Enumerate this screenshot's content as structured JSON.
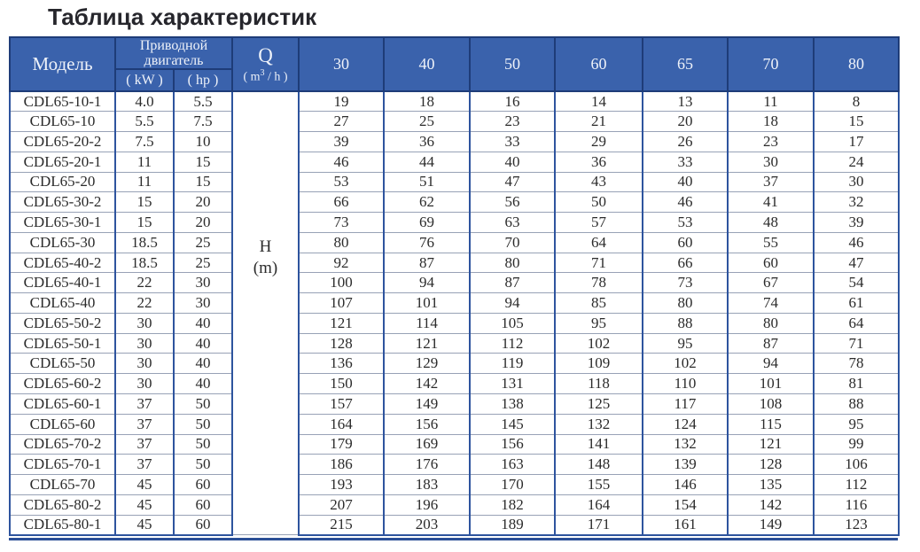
{
  "page": {
    "title": "Таблица характеристик"
  },
  "colors": {
    "header_background": "#3a62ac",
    "header_border": "#1e3c78",
    "body_vertical_border": "#2e549e",
    "body_horizontal_border": "#98a2b6",
    "header_text": "#eef2f9",
    "body_text": "#2b2b2b"
  },
  "table": {
    "header": {
      "model": "Модель",
      "motor_group_line1": "Приводной",
      "motor_group_line2": "двигатель",
      "kw": "( kW )",
      "hp": "( hp )",
      "q_symbol": "Q",
      "q_unit_prefix": "( m",
      "q_unit_sup": "3",
      "q_unit_suffix": " / h )",
      "flow_columns": [
        "30",
        "40",
        "50",
        "60",
        "65",
        "70",
        "80"
      ]
    },
    "h_label_line1": "H",
    "h_label_line2": "(m)",
    "rows": [
      {
        "model": "CDL65-10-1",
        "kw": "4.0",
        "hp": "5.5",
        "values": [
          19,
          18,
          16,
          14,
          13,
          11,
          8
        ]
      },
      {
        "model": "CDL65-10",
        "kw": "5.5",
        "hp": "7.5",
        "values": [
          27,
          25,
          23,
          21,
          20,
          18,
          15
        ]
      },
      {
        "model": "CDL65-20-2",
        "kw": "7.5",
        "hp": "10",
        "values": [
          39,
          36,
          33,
          29,
          26,
          23,
          17
        ]
      },
      {
        "model": "CDL65-20-1",
        "kw": "11",
        "hp": "15",
        "values": [
          46,
          44,
          40,
          36,
          33,
          30,
          24
        ]
      },
      {
        "model": "CDL65-20",
        "kw": "11",
        "hp": "15",
        "values": [
          53,
          51,
          47,
          43,
          40,
          37,
          30
        ]
      },
      {
        "model": "CDL65-30-2",
        "kw": "15",
        "hp": "20",
        "values": [
          66,
          62,
          56,
          50,
          46,
          41,
          32
        ]
      },
      {
        "model": "CDL65-30-1",
        "kw": "15",
        "hp": "20",
        "values": [
          73,
          69,
          63,
          57,
          53,
          48,
          39
        ]
      },
      {
        "model": "CDL65-30",
        "kw": "18.5",
        "hp": "25",
        "values": [
          80,
          76,
          70,
          64,
          60,
          55,
          46
        ]
      },
      {
        "model": "CDL65-40-2",
        "kw": "18.5",
        "hp": "25",
        "values": [
          92,
          87,
          80,
          71,
          66,
          60,
          47
        ]
      },
      {
        "model": "CDL65-40-1",
        "kw": "22",
        "hp": "30",
        "values": [
          100,
          94,
          87,
          78,
          73,
          67,
          54
        ]
      },
      {
        "model": "CDL65-40",
        "kw": "22",
        "hp": "30",
        "values": [
          107,
          101,
          94,
          85,
          80,
          74,
          61
        ]
      },
      {
        "model": "CDL65-50-2",
        "kw": "30",
        "hp": "40",
        "values": [
          121,
          114,
          105,
          95,
          88,
          80,
          64
        ]
      },
      {
        "model": "CDL65-50-1",
        "kw": "30",
        "hp": "40",
        "values": [
          128,
          121,
          112,
          102,
          95,
          87,
          71
        ]
      },
      {
        "model": "CDL65-50",
        "kw": "30",
        "hp": "40",
        "values": [
          136,
          129,
          119,
          109,
          102,
          94,
          78
        ]
      },
      {
        "model": "CDL65-60-2",
        "kw": "30",
        "hp": "40",
        "values": [
          150,
          142,
          131,
          118,
          110,
          101,
          81
        ]
      },
      {
        "model": "CDL65-60-1",
        "kw": "37",
        "hp": "50",
        "values": [
          157,
          149,
          138,
          125,
          117,
          108,
          88
        ]
      },
      {
        "model": "CDL65-60",
        "kw": "37",
        "hp": "50",
        "values": [
          164,
          156,
          145,
          132,
          124,
          115,
          95
        ]
      },
      {
        "model": "CDL65-70-2",
        "kw": "37",
        "hp": "50",
        "values": [
          179,
          169,
          156,
          141,
          132,
          121,
          99
        ]
      },
      {
        "model": "CDL65-70-1",
        "kw": "37",
        "hp": "50",
        "values": [
          186,
          176,
          163,
          148,
          139,
          128,
          106
        ]
      },
      {
        "model": "CDL65-70",
        "kw": "45",
        "hp": "60",
        "values": [
          193,
          183,
          170,
          155,
          146,
          135,
          112
        ]
      },
      {
        "model": "CDL65-80-2",
        "kw": "45",
        "hp": "60",
        "values": [
          207,
          196,
          182,
          164,
          154,
          142,
          116
        ]
      },
      {
        "model": "CDL65-80-1",
        "kw": "45",
        "hp": "60",
        "values": [
          215,
          203,
          189,
          171,
          161,
          149,
          123
        ]
      }
    ]
  }
}
